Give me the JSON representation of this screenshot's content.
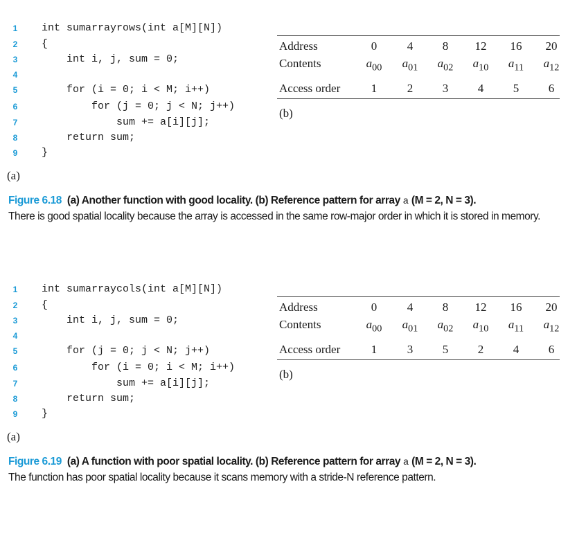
{
  "figures": [
    {
      "code": {
        "line_numbers": [
          "1",
          "2",
          "3",
          "4",
          "5",
          "6",
          "7",
          "8",
          "9"
        ],
        "lines": [
          "int sumarrayrows(int a[M][N])",
          "{",
          "    int i, j, sum = 0;",
          "",
          "    for (i = 0; i < M; i++)",
          "        for (j = 0; j < N; j++)",
          "            sum += a[i][j];",
          "    return sum;",
          "}"
        ]
      },
      "label_a": "(a)",
      "label_b": "(b)",
      "table": {
        "row_headers": [
          "Address",
          "Contents",
          "Access order"
        ],
        "addresses": [
          "0",
          "4",
          "8",
          "12",
          "16",
          "20"
        ],
        "contents": [
          [
            "a",
            "00"
          ],
          [
            "a",
            "01"
          ],
          [
            "a",
            "02"
          ],
          [
            "a",
            "10"
          ],
          [
            "a",
            "11"
          ],
          [
            "a",
            "12"
          ]
        ],
        "access_order": [
          "1",
          "2",
          "3",
          "4",
          "5",
          "6"
        ]
      },
      "caption": {
        "figure_number": "Figure 6.18",
        "title": "(a) Another function with good locality. (b) Reference pattern for array",
        "array_name": "a",
        "params": "(M = 2, N = 3).",
        "body": "There is good spatial locality because the array is accessed in the same row-major order in which it is stored in memory."
      }
    },
    {
      "code": {
        "line_numbers": [
          "1",
          "2",
          "3",
          "4",
          "5",
          "6",
          "7",
          "8",
          "9"
        ],
        "lines": [
          "int sumarraycols(int a[M][N])",
          "{",
          "    int i, j, sum = 0;",
          "",
          "    for (j = 0; j < N; j++)",
          "        for (i = 0; i < M; i++)",
          "            sum += a[i][j];",
          "    return sum;",
          "}"
        ]
      },
      "label_a": "(a)",
      "label_b": "(b)",
      "table": {
        "row_headers": [
          "Address",
          "Contents",
          "Access order"
        ],
        "addresses": [
          "0",
          "4",
          "8",
          "12",
          "16",
          "20"
        ],
        "contents": [
          [
            "a",
            "00"
          ],
          [
            "a",
            "01"
          ],
          [
            "a",
            "02"
          ],
          [
            "a",
            "10"
          ],
          [
            "a",
            "11"
          ],
          [
            "a",
            "12"
          ]
        ],
        "access_order": [
          "1",
          "3",
          "5",
          "2",
          "4",
          "6"
        ]
      },
      "caption": {
        "figure_number": "Figure 6.19",
        "title": "(a) A function with poor spatial locality. (b) Reference pattern for array",
        "array_name": "a",
        "params": "(M = 2, N = 3).",
        "body": "The function has poor spatial locality because it scans memory with a stride-N reference pattern."
      }
    }
  ],
  "colors": {
    "accent": "#1a9ad6",
    "text": "#1a1a1a"
  }
}
